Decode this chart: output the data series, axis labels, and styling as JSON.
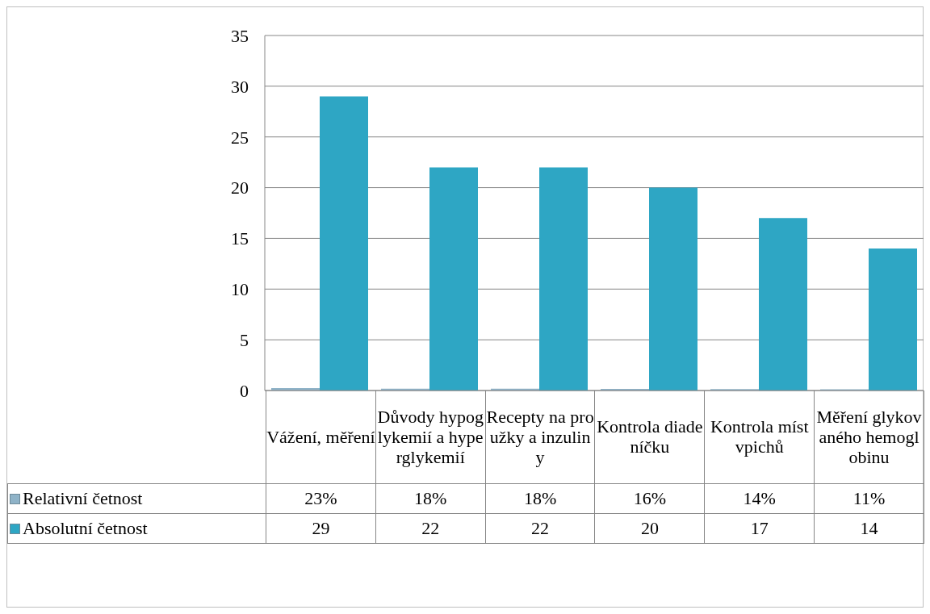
{
  "chart_data": {
    "type": "bar",
    "categories": [
      "Vážení, měření",
      "Důvody hypoglykemií a hyperglykemií",
      "Recepty na proužky a inzuliny",
      "Kontrola diadeníčku",
      "Kontrola míst vpichů",
      "Měření glykovaného hemoglobinu"
    ],
    "series": [
      {
        "name": "Relativní četnost",
        "color": "#8fb3c8",
        "values": [
          0.23,
          0.18,
          0.18,
          0.16,
          0.14,
          0.11
        ],
        "value_labels": [
          "23%",
          "18%",
          "18%",
          "16%",
          "14%",
          "11%"
        ]
      },
      {
        "name": "Absolutní četnost",
        "color": "#2ea6c4",
        "values": [
          29,
          22,
          22,
          20,
          17,
          14
        ],
        "value_labels": [
          "29",
          "22",
          "22",
          "20",
          "17",
          "14"
        ]
      }
    ],
    "ylim": [
      0,
      35
    ],
    "yticks": [
      0,
      5,
      10,
      15,
      20,
      25,
      30,
      35
    ],
    "grid": "y",
    "legend": "bottom"
  }
}
